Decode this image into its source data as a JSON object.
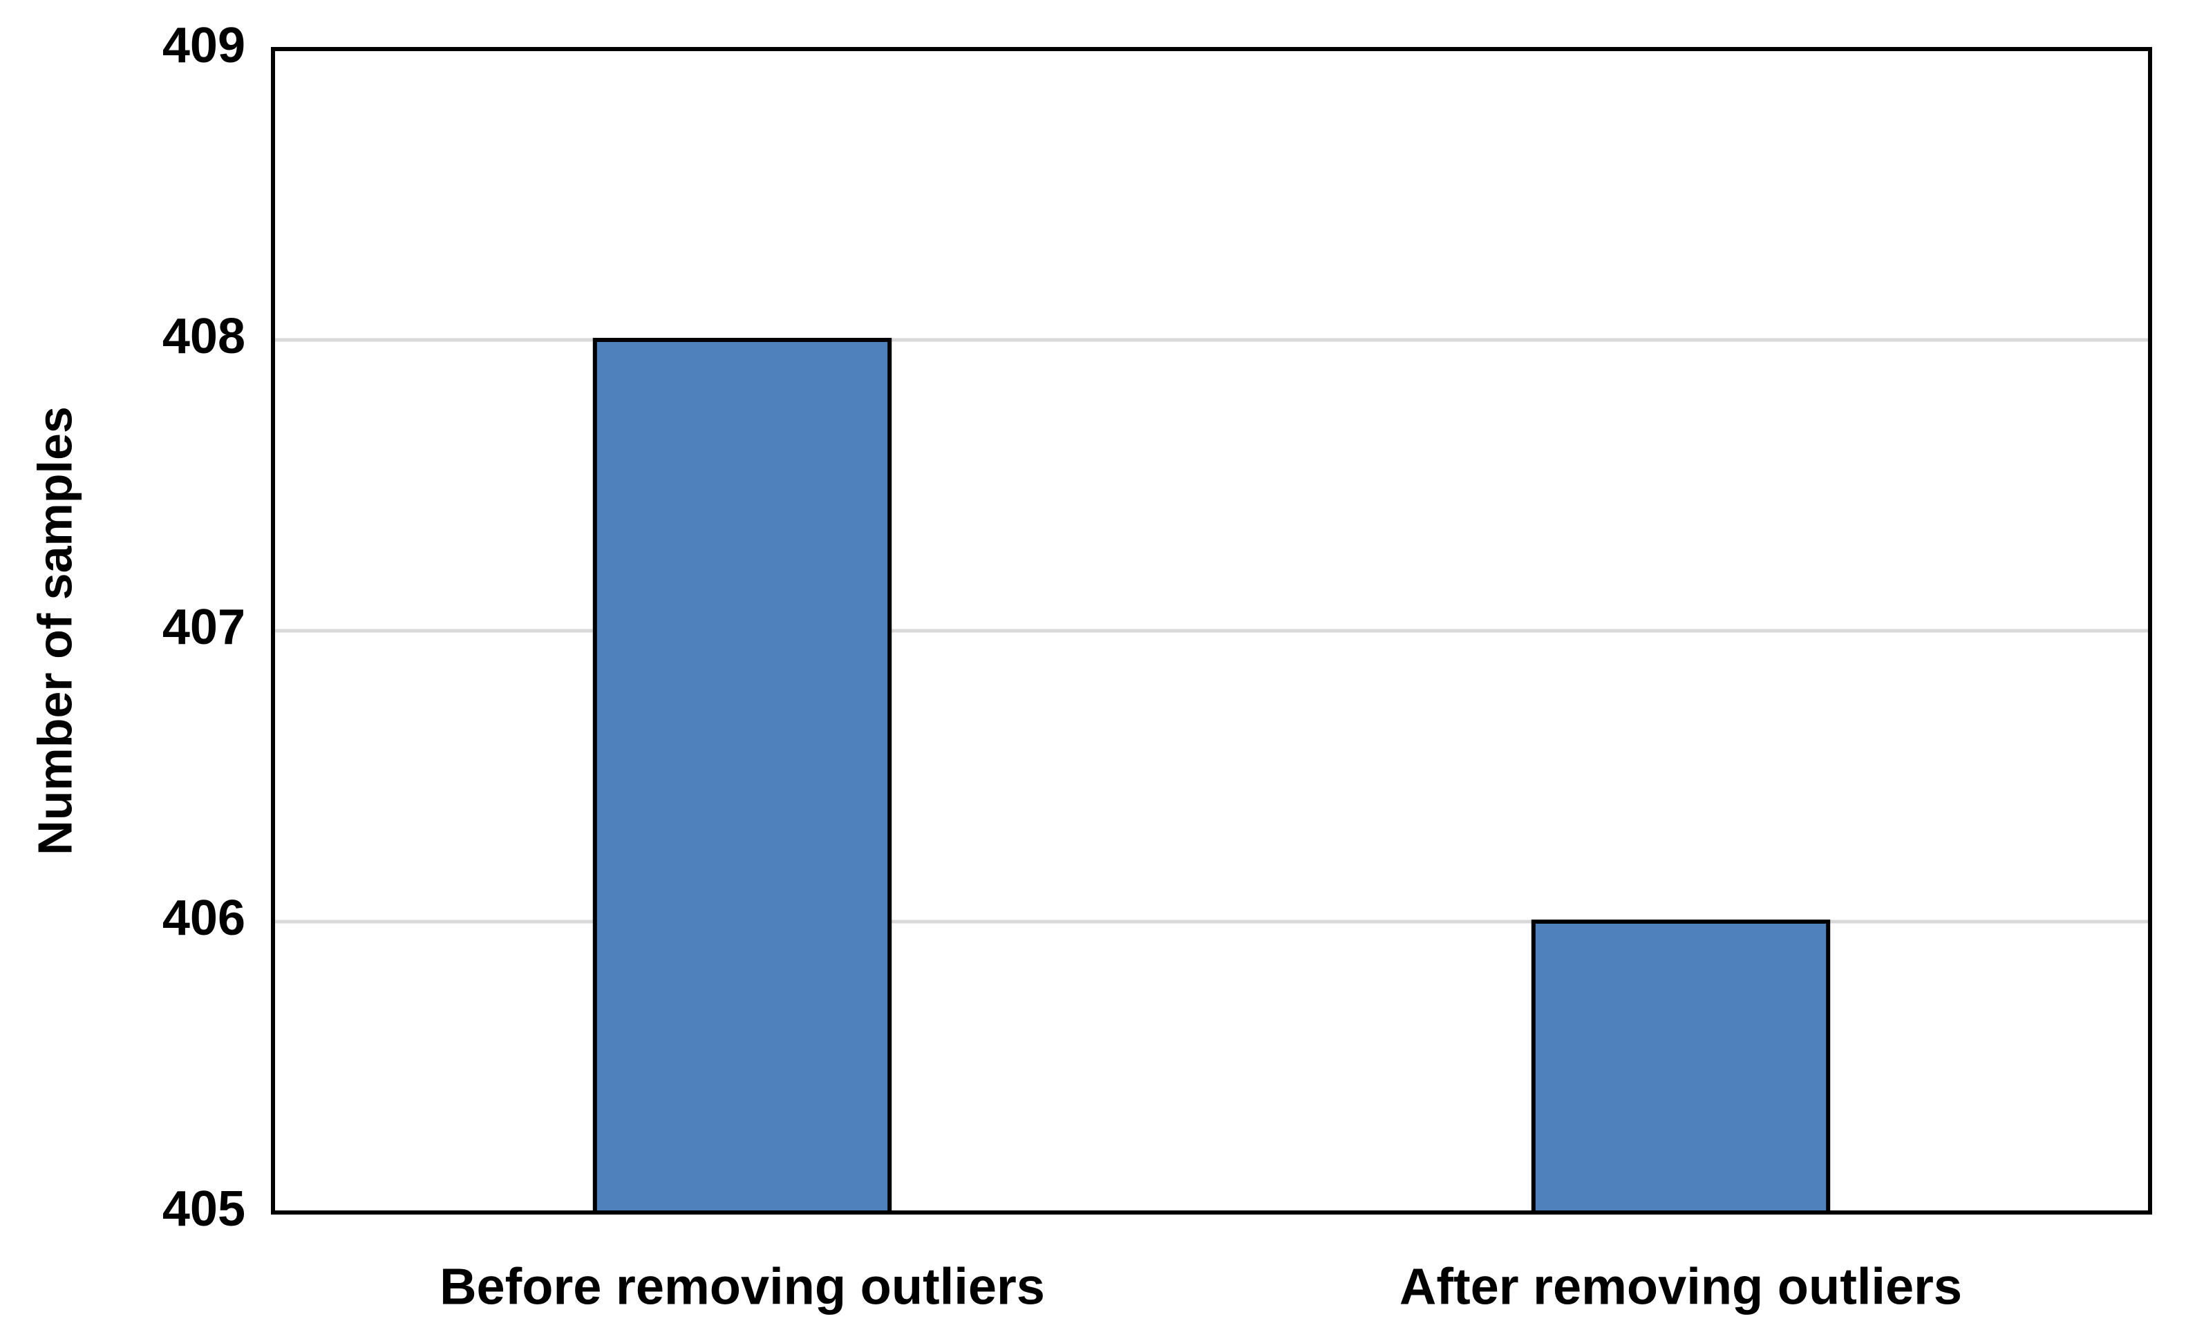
{
  "chart_data": {
    "type": "bar",
    "y_label": "Number of samples",
    "categories": [
      "Before removing outliers",
      "After removing outliers"
    ],
    "values": [
      408,
      406
    ],
    "color": "#4f81bd",
    "ylim": [
      405,
      409
    ],
    "yticks": [
      405,
      406,
      407,
      408,
      409
    ],
    "grid": true
  }
}
